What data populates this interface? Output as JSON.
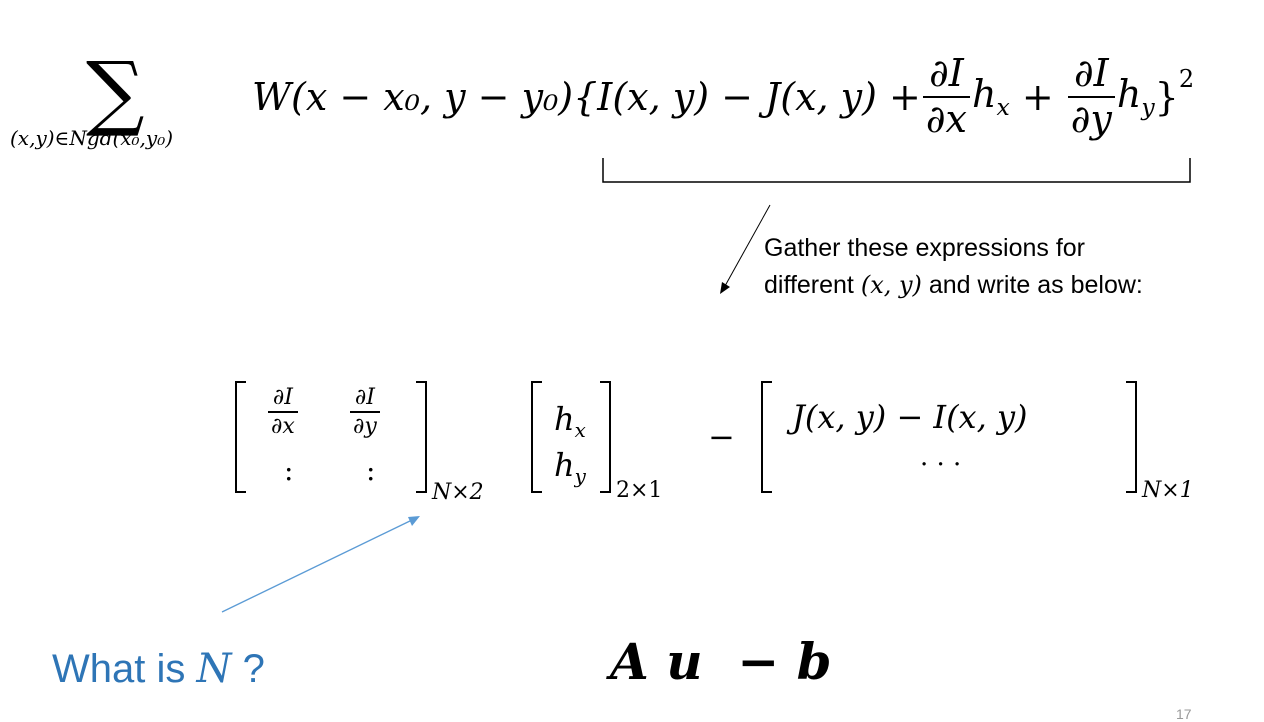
{
  "equation_top": {
    "sum_symbol": "∑",
    "sum_index": "(x,y)∈Ngd(x₀,y₀)",
    "lead": "W(x − x₀, y − y₀){I(x, y) − J(x, y) + ",
    "frac_num": "∂I",
    "frac_den_x": "∂x",
    "frac_den_y": "∂y",
    "hx_term": "h",
    "hx_sub": "x",
    "plus": " + ",
    "hy_term": "h",
    "hy_sub": "y",
    "close": "}",
    "exponent": "2"
  },
  "annotation": {
    "line1": "Gather these expressions for",
    "line2_a": "different ",
    "line2_math": "(x, y)",
    "line2_b": " and write as below:"
  },
  "matrix_equation": {
    "m1_r1c1_num": "∂I",
    "m1_r1c1_den": "∂x",
    "m1_r1c2_num": "∂I",
    "m1_r1c2_den": "∂y",
    "m1_r2c1": ":",
    "m1_r2c2": ":",
    "m1_dim": "N×2",
    "m2_r1": "h",
    "m2_r1_sub": "x",
    "m2_r2": "h",
    "m2_r2_sub": "y",
    "m2_dim": "2×1",
    "minus": "−",
    "m3_r1": "J(x, y) − I(x, y)",
    "m3_r2": "· · ·",
    "m3_dim": "N×1"
  },
  "question": {
    "prefix": "What is ",
    "var": "N",
    "suffix": " ?"
  },
  "compact_form": "A u  − b",
  "colors": {
    "question_blue": "#2e75b6",
    "arrow_blue": "#5b9bd5"
  },
  "page_number": "17"
}
